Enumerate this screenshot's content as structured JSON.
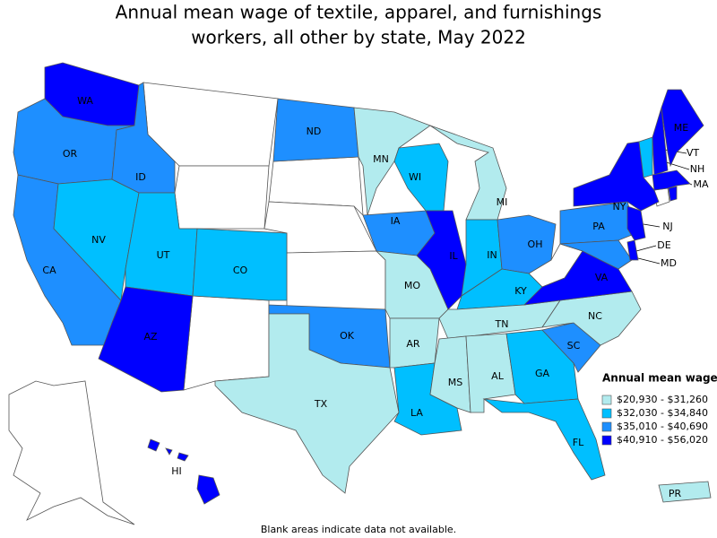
{
  "title_lines": [
    "Annual mean wage of textile, apparel, and furnishings",
    "workers, all other by state, May 2022"
  ],
  "legend": {
    "title": "Annual mean wage",
    "items": [
      {
        "label": "$20,930 - $31,260",
        "color": "#b2ebee"
      },
      {
        "label": "$32,030 - $34,840",
        "color": "#00bfff"
      },
      {
        "label": "$35,010 - $40,690",
        "color": "#1e8fff"
      },
      {
        "label": "$40,910 - $56,020",
        "color": "#0000ff"
      }
    ]
  },
  "states": [
    {
      "label": "WA",
      "bin": 3
    },
    {
      "label": "OR",
      "bin": 2
    },
    {
      "label": "CA",
      "bin": 2
    },
    {
      "label": "NV",
      "bin": 1
    },
    {
      "label": "ID",
      "bin": 2
    },
    {
      "label": "UT",
      "bin": 1
    },
    {
      "label": "AZ",
      "bin": 3
    },
    {
      "label": "CO",
      "bin": 1
    },
    {
      "label": "ND",
      "bin": 2
    },
    {
      "label": "OK",
      "bin": 2
    },
    {
      "label": "TX",
      "bin": 0
    },
    {
      "label": "MN",
      "bin": 0
    },
    {
      "label": "IA",
      "bin": 2
    },
    {
      "label": "MO",
      "bin": 0
    },
    {
      "label": "AR",
      "bin": 0
    },
    {
      "label": "LA",
      "bin": 1
    },
    {
      "label": "WI",
      "bin": 1
    },
    {
      "label": "IL",
      "bin": 3
    },
    {
      "label": "MI",
      "bin": 0
    },
    {
      "label": "IN",
      "bin": 1
    },
    {
      "label": "OH",
      "bin": 2
    },
    {
      "label": "KY",
      "bin": 1
    },
    {
      "label": "TN",
      "bin": 0
    },
    {
      "label": "MS",
      "bin": 0
    },
    {
      "label": "AL",
      "bin": 0
    },
    {
      "label": "GA",
      "bin": 1
    },
    {
      "label": "FL",
      "bin": 1
    },
    {
      "label": "SC",
      "bin": 2
    },
    {
      "label": "NC",
      "bin": 0
    },
    {
      "label": "VA",
      "bin": 3
    },
    {
      "label": "PA",
      "bin": 2
    },
    {
      "label": "MD",
      "bin": 2
    },
    {
      "label": "DE",
      "bin": 3
    },
    {
      "label": "NJ",
      "bin": 3
    },
    {
      "label": "NY",
      "bin": 3
    },
    {
      "label": "VT",
      "bin": 1
    },
    {
      "label": "NH",
      "bin": 3
    },
    {
      "label": "ME",
      "bin": 3
    },
    {
      "label": "MA",
      "bin": 3
    },
    {
      "label": null,
      "bin": 3
    },
    {
      "label": "HI",
      "bin": 3
    },
    {
      "label": "PR",
      "bin": 0
    }
  ],
  "note": "Blank areas indicate data not available."
}
